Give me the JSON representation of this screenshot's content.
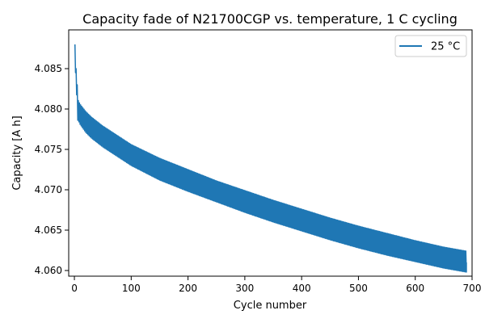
{
  "chart_data": {
    "type": "line",
    "title": "Capacity fade of N21700CGP vs. temperature, 1 C cycling",
    "xlabel": "Cycle number",
    "ylabel": "Capacity [A h]",
    "xlim": [
      -10,
      700
    ],
    "ylim": [
      4.0593,
      4.0898
    ],
    "x_ticks": [
      0,
      100,
      200,
      300,
      400,
      500,
      600,
      700
    ],
    "y_ticks": [
      4.06,
      4.065,
      4.07,
      4.075,
      4.08,
      4.085
    ],
    "x_tick_labels": [
      "0",
      "100",
      "200",
      "300",
      "400",
      "500",
      "600",
      "700"
    ],
    "y_tick_labels": [
      "4.060",
      "4.065",
      "4.070",
      "4.075",
      "4.080",
      "4.085"
    ],
    "grid": false,
    "legend_position": "top-right",
    "series": [
      {
        "name": "25 °C",
        "color": "#1f77b4",
        "cycles_start": 1,
        "cycles_end": 690,
        "envelope": {
          "x": [
            1,
            2,
            3,
            5,
            6,
            8,
            10,
            20,
            30,
            50,
            100,
            150,
            200,
            250,
            300,
            350,
            400,
            450,
            500,
            550,
            600,
            650,
            690
          ],
          "upper": [
            4.088,
            4.086,
            4.085,
            4.083,
            4.0812,
            4.0809,
            4.0806,
            4.0797,
            4.079,
            4.0779,
            4.0756,
            4.0739,
            4.0725,
            4.0711,
            4.0699,
            4.0687,
            4.0676,
            4.0665,
            4.0655,
            4.0646,
            4.0637,
            4.0629,
            4.0624
          ],
          "lower": [
            4.087,
            4.0845,
            4.0835,
            4.08,
            4.0786,
            4.0784,
            4.0781,
            4.0771,
            4.0764,
            4.0753,
            4.073,
            4.0712,
            4.0698,
            4.0685,
            4.0672,
            4.066,
            4.0649,
            4.0638,
            4.0628,
            4.0619,
            4.0611,
            4.0603,
            4.0598
          ]
        },
        "final_point": {
          "x": 690,
          "y": 4.061
        }
      }
    ]
  }
}
